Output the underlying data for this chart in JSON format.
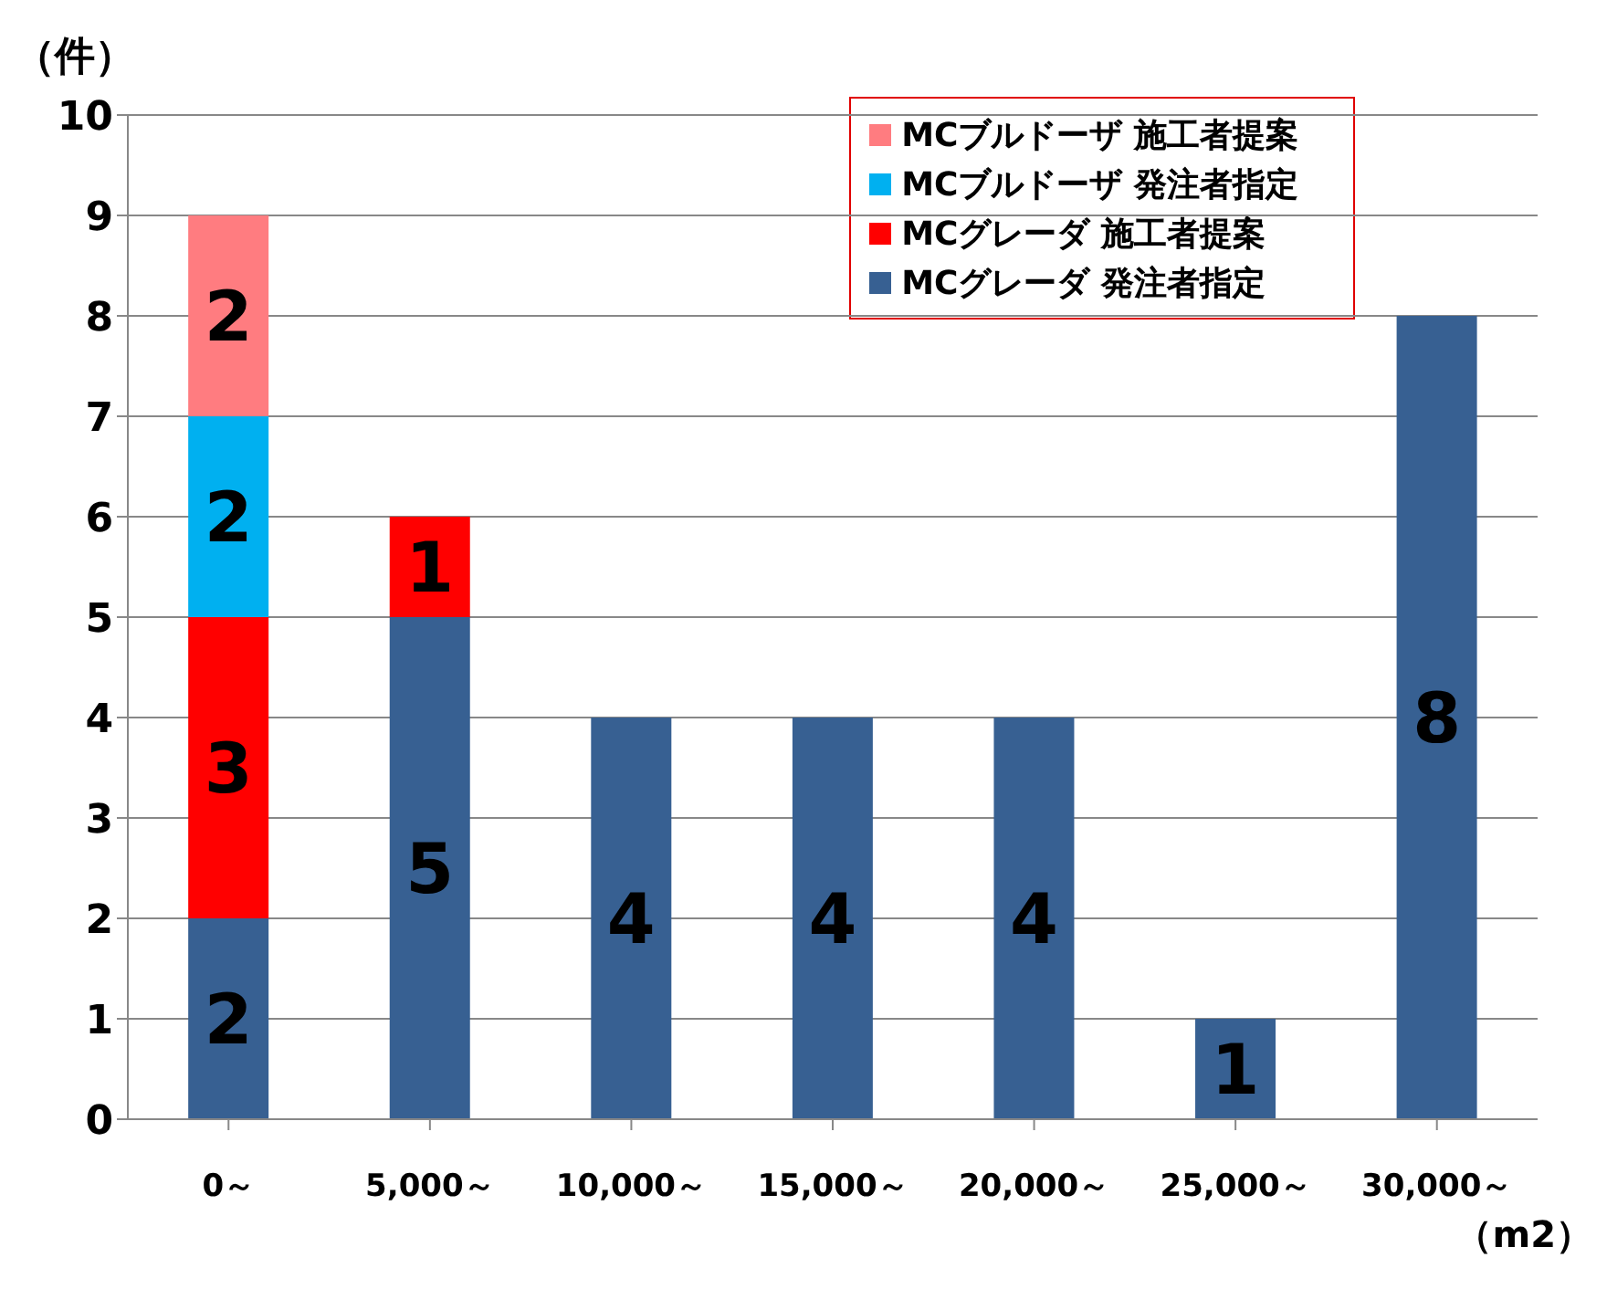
{
  "chart_data": {
    "type": "bar",
    "stacked": true,
    "ylabel": "（件）",
    "xlabel": "（m2）",
    "categories": [
      "0～",
      "5,000～",
      "10,000～",
      "15,000～",
      "20,000～",
      "25,000～",
      "30,000～"
    ],
    "series": [
      {
        "name": "MCグレーダ 発注者指定",
        "color": "#376092",
        "values": [
          2,
          5,
          4,
          4,
          4,
          1,
          8
        ]
      },
      {
        "name": "MCグレーダ 施工者提案",
        "color": "#ff0000",
        "values": [
          3,
          1,
          null,
          null,
          null,
          null,
          null
        ]
      },
      {
        "name": "MCブルドーザ 発注者指定",
        "color": "#00b0f0",
        "values": [
          2,
          null,
          null,
          null,
          null,
          null,
          null
        ]
      },
      {
        "name": "MCブルドーザ 施工者提案",
        "color": "#ff7c80",
        "values": [
          2,
          null,
          null,
          null,
          null,
          null,
          null
        ]
      }
    ],
    "ylim": [
      0,
      10
    ],
    "yticks": [
      0,
      1,
      2,
      3,
      4,
      5,
      6,
      7,
      8,
      9,
      10
    ],
    "grid": "y",
    "legend": "top right",
    "data_labels": true
  }
}
